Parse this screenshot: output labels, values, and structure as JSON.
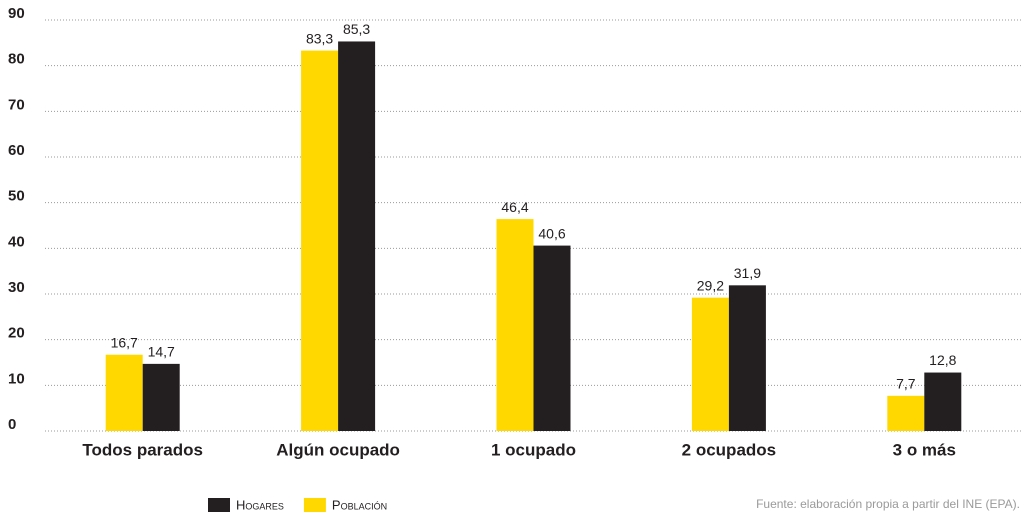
{
  "chart_data": {
    "type": "bar",
    "categories": [
      "Todos parados",
      "Algún ocupado",
      "1 ocupado",
      "2 ocupados",
      "3 o más"
    ],
    "series": [
      {
        "name": "Hogares",
        "color": "#231f20",
        "values": [
          14.7,
          85.3,
          40.6,
          31.9,
          12.8
        ],
        "value_labels": [
          "14,7",
          "85,3",
          "40,6",
          "31,9",
          "12,8"
        ]
      },
      {
        "name": "Población",
        "color": "#ffd800",
        "values": [
          16.7,
          83.3,
          46.4,
          29.2,
          7.7
        ],
        "value_labels": [
          "16,7",
          "83,3",
          "46,4",
          "29,2",
          "7,7"
        ]
      }
    ],
    "ylim": [
      0,
      90
    ],
    "yticks": [
      0,
      10,
      20,
      30,
      40,
      50,
      60,
      70,
      80,
      90
    ],
    "grid": true,
    "note": "Fuente: elaboración propia a partir del INE (EPA)."
  }
}
